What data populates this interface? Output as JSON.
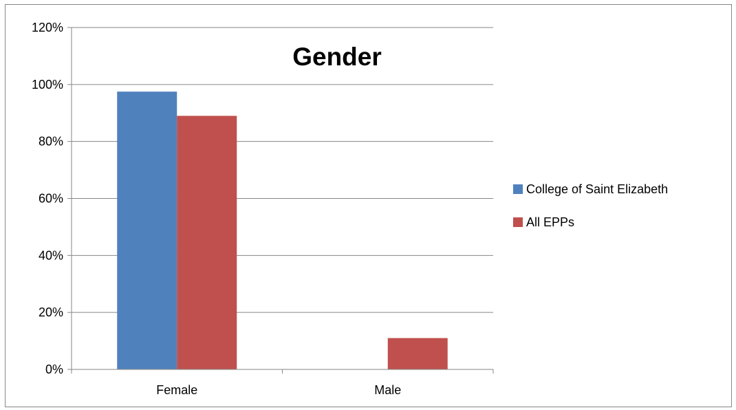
{
  "chart_data": {
    "type": "bar",
    "title": "Gender",
    "xlabel": "",
    "ylabel": "",
    "categories": [
      "Female",
      "Male"
    ],
    "series": [
      {
        "name": "College of Saint Elizabeth",
        "values": [
          97.5,
          0
        ],
        "color": "#4F81BD"
      },
      {
        "name": "All EPPs",
        "values": [
          89,
          11
        ],
        "color": "#C0504D"
      }
    ],
    "ylim": [
      0,
      120
    ],
    "yticks": [
      0,
      20,
      40,
      60,
      80,
      100,
      120
    ],
    "ytick_labels": [
      "0%",
      "20%",
      "40%",
      "60%",
      "80%",
      "100%",
      "120%"
    ],
    "grid": true,
    "legend_position": "right"
  }
}
